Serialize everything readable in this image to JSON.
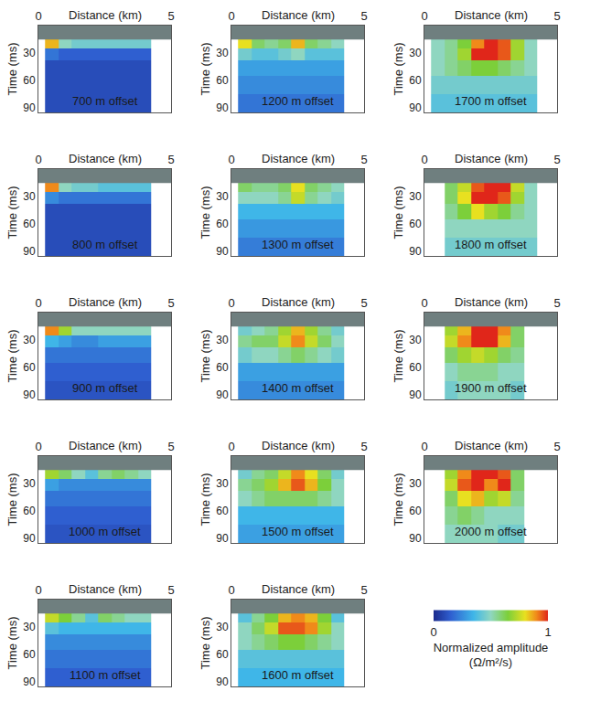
{
  "chart_data": [
    {
      "type": "heatmap",
      "title": "700 m offset",
      "x_label": "Distance (km)",
      "y_label": "Time (ms)",
      "xlim": [
        0,
        5
      ],
      "xticks": [
        0,
        5
      ],
      "ylim": [
        0,
        95
      ],
      "yticks": [
        30,
        60,
        90
      ],
      "x": [
        0.5,
        1,
        1.5,
        2,
        2.5,
        3,
        3.5,
        4
      ],
      "y": [
        20,
        30,
        45,
        65,
        85
      ],
      "z": [
        [
          0.85,
          0.5,
          0.45,
          0.45,
          0.45,
          0.45,
          0.45,
          0.45
        ],
        [
          0.2,
          0.15,
          0.15,
          0.15,
          0.15,
          0.15,
          0.15,
          0.15
        ],
        [
          0.1,
          0.1,
          0.1,
          0.1,
          0.1,
          0.1,
          0.1,
          0.1
        ],
        [
          0.1,
          0.1,
          0.1,
          0.1,
          0.1,
          0.1,
          0.1,
          0.1
        ],
        [
          0.1,
          0.1,
          0.1,
          0.1,
          0.1,
          0.1,
          0.1,
          0.1
        ]
      ]
    },
    {
      "type": "heatmap",
      "title": "800 m offset",
      "x_label": "Distance (km)",
      "y_label": "Time (ms)",
      "xlim": [
        0,
        5
      ],
      "xticks": [
        0,
        5
      ],
      "ylim": [
        0,
        95
      ],
      "yticks": [
        30,
        60,
        90
      ],
      "x": [
        0.5,
        1,
        1.5,
        2,
        2.5,
        3,
        3.5,
        4
      ],
      "y": [
        20,
        30,
        45,
        65,
        85
      ],
      "z": [
        [
          0.9,
          0.5,
          0.45,
          0.45,
          0.4,
          0.4,
          0.4,
          0.4
        ],
        [
          0.25,
          0.2,
          0.2,
          0.2,
          0.2,
          0.2,
          0.2,
          0.2
        ],
        [
          0.1,
          0.1,
          0.1,
          0.1,
          0.1,
          0.1,
          0.1,
          0.1
        ],
        [
          0.1,
          0.1,
          0.1,
          0.1,
          0.1,
          0.1,
          0.1,
          0.1
        ],
        [
          0.1,
          0.1,
          0.1,
          0.1,
          0.1,
          0.1,
          0.1,
          0.1
        ]
      ]
    },
    {
      "type": "heatmap",
      "title": "900 m offset",
      "x_label": "Distance (km)",
      "y_label": "Time (ms)",
      "xlim": [
        0,
        5
      ],
      "xticks": [
        0,
        5
      ],
      "ylim": [
        0,
        95
      ],
      "yticks": [
        30,
        60,
        90
      ],
      "x": [
        0.5,
        1,
        1.5,
        2,
        2.5,
        3,
        3.5,
        4
      ],
      "y": [
        20,
        30,
        45,
        65,
        85
      ],
      "z": [
        [
          0.9,
          0.7,
          0.5,
          0.5,
          0.5,
          0.5,
          0.5,
          0.5
        ],
        [
          0.35,
          0.3,
          0.25,
          0.25,
          0.3,
          0.3,
          0.3,
          0.3
        ],
        [
          0.2,
          0.2,
          0.2,
          0.2,
          0.2,
          0.2,
          0.2,
          0.2
        ],
        [
          0.15,
          0.15,
          0.15,
          0.15,
          0.15,
          0.15,
          0.15,
          0.15
        ],
        [
          0.12,
          0.12,
          0.12,
          0.12,
          0.12,
          0.12,
          0.12,
          0.12
        ]
      ]
    },
    {
      "type": "heatmap",
      "title": "1000 m offset",
      "x_label": "Distance (km)",
      "y_label": "Time (ms)",
      "xlim": [
        0,
        5
      ],
      "xticks": [
        0,
        5
      ],
      "ylim": [
        0,
        95
      ],
      "yticks": [
        30,
        60,
        90
      ],
      "x": [
        0.5,
        1,
        1.5,
        2,
        2.5,
        3,
        3.5,
        4
      ],
      "y": [
        20,
        30,
        45,
        65,
        85
      ],
      "z": [
        [
          0.7,
          0.6,
          0.5,
          0.4,
          0.55,
          0.6,
          0.55,
          0.5
        ],
        [
          0.3,
          0.25,
          0.25,
          0.25,
          0.25,
          0.25,
          0.25,
          0.25
        ],
        [
          0.2,
          0.2,
          0.2,
          0.2,
          0.2,
          0.2,
          0.2,
          0.2
        ],
        [
          0.15,
          0.15,
          0.15,
          0.15,
          0.15,
          0.15,
          0.15,
          0.15
        ],
        [
          0.12,
          0.12,
          0.12,
          0.12,
          0.12,
          0.12,
          0.12,
          0.12
        ]
      ]
    },
    {
      "type": "heatmap",
      "title": "1100 m offset",
      "x_label": "Distance (km)",
      "y_label": "Time (ms)",
      "xlim": [
        0,
        5
      ],
      "xticks": [
        0,
        5
      ],
      "ylim": [
        0,
        95
      ],
      "yticks": [
        30,
        60,
        90
      ],
      "x": [
        0.5,
        1,
        1.5,
        2,
        2.5,
        3,
        3.5,
        4
      ],
      "y": [
        20,
        30,
        45,
        65,
        85
      ],
      "z": [
        [
          0.75,
          0.65,
          0.55,
          0.4,
          0.6,
          0.55,
          0.5,
          0.5
        ],
        [
          0.4,
          0.35,
          0.35,
          0.35,
          0.35,
          0.35,
          0.35,
          0.35
        ],
        [
          0.25,
          0.25,
          0.25,
          0.25,
          0.25,
          0.25,
          0.25,
          0.25
        ],
        [
          0.2,
          0.2,
          0.2,
          0.2,
          0.2,
          0.2,
          0.2,
          0.2
        ],
        [
          0.15,
          0.15,
          0.15,
          0.15,
          0.15,
          0.15,
          0.15,
          0.15
        ]
      ]
    },
    {
      "type": "heatmap",
      "title": "1200 m offset",
      "x_label": "Distance (km)",
      "y_label": "Time (ms)",
      "xlim": [
        0,
        5
      ],
      "xticks": [
        0,
        5
      ],
      "ylim": [
        0,
        95
      ],
      "yticks": [
        30,
        60,
        90
      ],
      "x": [
        0.5,
        1,
        1.5,
        2,
        2.5,
        3,
        3.5,
        4
      ],
      "y": [
        20,
        30,
        45,
        65,
        85
      ],
      "z": [
        [
          0.8,
          0.6,
          0.55,
          0.6,
          0.85,
          0.6,
          0.55,
          0.5
        ],
        [
          0.45,
          0.4,
          0.4,
          0.45,
          0.5,
          0.4,
          0.4,
          0.4
        ],
        [
          0.3,
          0.3,
          0.3,
          0.3,
          0.3,
          0.3,
          0.3,
          0.3
        ],
        [
          0.25,
          0.25,
          0.25,
          0.25,
          0.25,
          0.25,
          0.25,
          0.25
        ],
        [
          0.2,
          0.2,
          0.2,
          0.2,
          0.2,
          0.2,
          0.2,
          0.2
        ]
      ]
    },
    {
      "type": "heatmap",
      "title": "1300 m offset",
      "x_label": "Distance (km)",
      "y_label": "Time (ms)",
      "xlim": [
        0,
        5
      ],
      "xticks": [
        0,
        5
      ],
      "ylim": [
        0,
        95
      ],
      "yticks": [
        30,
        60,
        90
      ],
      "x": [
        0.5,
        1,
        1.5,
        2,
        2.5,
        3,
        3.5,
        4
      ],
      "y": [
        20,
        30,
        45,
        65,
        85
      ],
      "z": [
        [
          0.6,
          0.55,
          0.55,
          0.6,
          0.8,
          0.6,
          0.55,
          0.5
        ],
        [
          0.5,
          0.5,
          0.5,
          0.55,
          0.75,
          0.55,
          0.5,
          0.45
        ],
        [
          0.35,
          0.35,
          0.35,
          0.35,
          0.35,
          0.35,
          0.35,
          0.35
        ],
        [
          0.28,
          0.28,
          0.28,
          0.28,
          0.28,
          0.28,
          0.28,
          0.28
        ],
        [
          0.22,
          0.22,
          0.22,
          0.22,
          0.22,
          0.22,
          0.22,
          0.22
        ]
      ]
    },
    {
      "type": "heatmap",
      "title": "1400 m offset",
      "x_label": "Distance (km)",
      "y_label": "Time (ms)",
      "xlim": [
        0,
        5
      ],
      "xticks": [
        0,
        5
      ],
      "ylim": [
        0,
        95
      ],
      "yticks": [
        30,
        60,
        90
      ],
      "x": [
        0.5,
        1,
        1.5,
        2,
        2.5,
        3,
        3.5,
        4
      ],
      "y": [
        20,
        30,
        45,
        65,
        85
      ],
      "z": [
        [
          0.45,
          0.5,
          0.55,
          0.7,
          0.85,
          0.7,
          0.55,
          0.45
        ],
        [
          0.55,
          0.6,
          0.6,
          0.75,
          0.9,
          0.75,
          0.6,
          0.5
        ],
        [
          0.45,
          0.5,
          0.5,
          0.55,
          0.6,
          0.55,
          0.5,
          0.45
        ],
        [
          0.3,
          0.3,
          0.3,
          0.3,
          0.3,
          0.3,
          0.3,
          0.3
        ],
        [
          0.25,
          0.25,
          0.25,
          0.25,
          0.25,
          0.25,
          0.25,
          0.25
        ]
      ]
    },
    {
      "type": "heatmap",
      "title": "1500 m offset",
      "x_label": "Distance (km)",
      "y_label": "Time (ms)",
      "xlim": [
        0,
        5
      ],
      "xticks": [
        0,
        5
      ],
      "ylim": [
        0,
        95
      ],
      "yticks": [
        30,
        60,
        90
      ],
      "x": [
        0.5,
        1,
        1.5,
        2,
        2.5,
        3,
        3.5,
        4
      ],
      "y": [
        20,
        30,
        45,
        65,
        85
      ],
      "z": [
        [
          0.45,
          0.55,
          0.6,
          0.75,
          0.9,
          0.8,
          0.6,
          0.45
        ],
        [
          0.55,
          0.6,
          0.7,
          0.85,
          0.95,
          0.85,
          0.65,
          0.5
        ],
        [
          0.5,
          0.55,
          0.6,
          0.6,
          0.6,
          0.6,
          0.55,
          0.5
        ],
        [
          0.35,
          0.35,
          0.35,
          0.35,
          0.35,
          0.35,
          0.35,
          0.35
        ],
        [
          0.3,
          0.3,
          0.3,
          0.3,
          0.3,
          0.3,
          0.3,
          0.3
        ]
      ]
    },
    {
      "type": "heatmap",
      "title": "1600 m offset",
      "x_label": "Distance (km)",
      "y_label": "Time (ms)",
      "xlim": [
        0,
        5
      ],
      "xticks": [
        0,
        5
      ],
      "ylim": [
        0,
        95
      ],
      "yticks": [
        30,
        60,
        90
      ],
      "x": [
        0.5,
        1,
        1.5,
        2,
        2.5,
        3,
        3.5,
        4
      ],
      "y": [
        20,
        30,
        45,
        65,
        85
      ],
      "z": [
        [
          0.4,
          0.55,
          0.65,
          0.85,
          0.9,
          0.85,
          0.65,
          0.4
        ],
        [
          0.5,
          0.6,
          0.75,
          0.95,
          0.95,
          0.9,
          0.7,
          0.5
        ],
        [
          0.5,
          0.55,
          0.6,
          0.65,
          0.65,
          0.6,
          0.55,
          0.5
        ],
        [
          0.4,
          0.4,
          0.4,
          0.4,
          0.4,
          0.4,
          0.4,
          0.4
        ],
        [
          0.35,
          0.35,
          0.35,
          0.35,
          0.35,
          0.35,
          0.35,
          0.35
        ]
      ]
    },
    {
      "type": "heatmap",
      "title": "1700 m offset",
      "x_label": "Distance (km)",
      "y_label": "Time (ms)",
      "xlim": [
        0,
        5
      ],
      "xticks": [
        0,
        5
      ],
      "ylim": [
        0,
        95
      ],
      "yticks": [
        30,
        60,
        90
      ],
      "x": [
        0.5,
        1,
        1.5,
        2,
        2.5,
        3,
        3.5,
        4
      ],
      "y": [
        20,
        30,
        45,
        65,
        85
      ],
      "z": [
        [
          0.5,
          0.55,
          0.65,
          0.9,
          1.0,
          0.95,
          0.7,
          0.5
        ],
        [
          0.5,
          0.55,
          0.7,
          1.0,
          1.0,
          0.95,
          0.7,
          0.5
        ],
        [
          0.5,
          0.55,
          0.6,
          0.65,
          0.65,
          0.6,
          0.55,
          0.5
        ],
        [
          0.45,
          0.45,
          0.45,
          0.45,
          0.45,
          0.45,
          0.45,
          0.45
        ],
        [
          0.4,
          0.4,
          0.4,
          0.4,
          0.4,
          0.4,
          0.4,
          0.4
        ]
      ]
    },
    {
      "type": "heatmap",
      "title": "1800 m offset",
      "x_label": "Distance (km)",
      "y_label": "Time (ms)",
      "xlim": [
        0,
        5
      ],
      "xticks": [
        0,
        5
      ],
      "ylim": [
        0,
        95
      ],
      "yticks": [
        30,
        60,
        90
      ],
      "x": [
        0.5,
        1,
        1.5,
        2,
        2.5,
        3,
        3.5,
        4
      ],
      "y": [
        20,
        30,
        45,
        65,
        85
      ],
      "z": [
        [
          null,
          0.6,
          0.75,
          0.95,
          1.0,
          1.0,
          0.75,
          0.5
        ],
        [
          null,
          0.6,
          0.8,
          1.0,
          1.0,
          0.95,
          0.7,
          0.5
        ],
        [
          null,
          0.55,
          0.65,
          0.8,
          0.7,
          0.65,
          0.55,
          0.5
        ],
        [
          null,
          0.5,
          0.5,
          0.5,
          0.5,
          0.5,
          0.5,
          0.5
        ],
        [
          null,
          0.45,
          0.45,
          0.45,
          0.45,
          0.45,
          0.45,
          0.45
        ]
      ]
    },
    {
      "type": "heatmap",
      "title": "1900 m offset",
      "x_label": "Distance (km)",
      "y_label": "Time (ms)",
      "xlim": [
        0,
        5
      ],
      "xticks": [
        0,
        5
      ],
      "ylim": [
        0,
        95
      ],
      "yticks": [
        30,
        60,
        90
      ],
      "x": [
        0.5,
        1,
        1.5,
        2,
        2.5,
        3,
        3.5,
        4
      ],
      "y": [
        20,
        30,
        45,
        65,
        85
      ],
      "z": [
        [
          null,
          0.7,
          0.85,
          1.0,
          1.0,
          0.9,
          0.6,
          null
        ],
        [
          null,
          0.75,
          0.9,
          1.0,
          1.0,
          0.85,
          0.6,
          null
        ],
        [
          null,
          0.6,
          0.7,
          0.75,
          0.7,
          0.6,
          0.55,
          null
        ],
        [
          null,
          0.5,
          0.55,
          0.55,
          0.55,
          0.5,
          0.5,
          null
        ],
        [
          null,
          0.45,
          0.5,
          0.5,
          0.5,
          0.5,
          0.45,
          null
        ]
      ]
    },
    {
      "type": "heatmap",
      "title": "2000 m offset",
      "x_label": "Distance (km)",
      "y_label": "Time (ms)",
      "xlim": [
        0,
        5
      ],
      "xticks": [
        0,
        5
      ],
      "ylim": [
        0,
        95
      ],
      "yticks": [
        30,
        60,
        90
      ],
      "x": [
        0.5,
        1,
        1.5,
        2,
        2.5,
        3,
        3.5,
        4
      ],
      "y": [
        20,
        30,
        45,
        65,
        85
      ],
      "z": [
        [
          null,
          0.7,
          0.9,
          1.0,
          1.0,
          0.95,
          0.6,
          null
        ],
        [
          null,
          0.75,
          0.95,
          1.0,
          0.9,
          1.0,
          0.6,
          null
        ],
        [
          null,
          0.6,
          0.8,
          0.85,
          0.7,
          0.75,
          0.55,
          null
        ],
        [
          null,
          0.55,
          0.6,
          0.55,
          0.5,
          0.5,
          0.5,
          null
        ],
        [
          null,
          0.5,
          0.5,
          0.5,
          0.5,
          0.45,
          0.45,
          null
        ]
      ]
    }
  ],
  "colorbar": {
    "title": "Normalized amplitude (Ω/m²/s)",
    "range": [
      0,
      1
    ],
    "ticks": [
      0,
      1
    ]
  }
}
